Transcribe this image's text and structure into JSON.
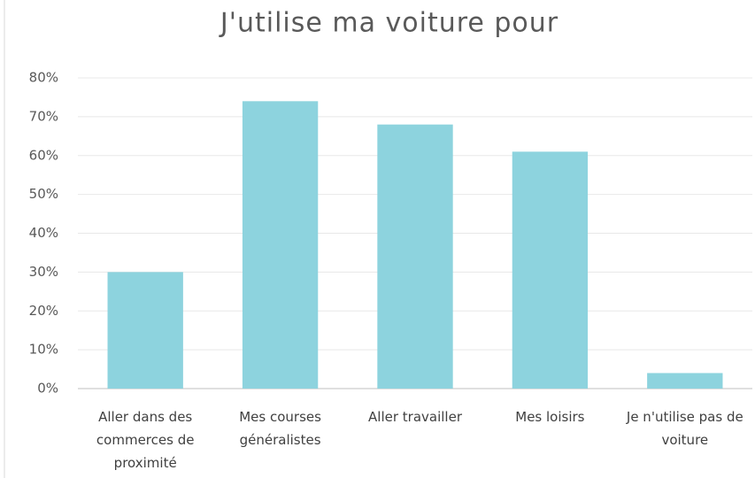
{
  "chart_data": {
    "type": "bar",
    "title": "J'utilise ma voiture pour",
    "categories": [
      "Aller dans des commerces de proximité",
      "Mes courses généralistes",
      "Aller travailler",
      "Mes loisirs",
      "Je n'utilise pas de voiture"
    ],
    "values": [
      30,
      74,
      68,
      61,
      4
    ],
    "color": "#8dd3de",
    "ylim": [
      0,
      80
    ],
    "yticks": [
      {
        "value": 0,
        "label": "0%"
      },
      {
        "value": 10,
        "label": "10%"
      },
      {
        "value": 20,
        "label": "20%"
      },
      {
        "value": 30,
        "label": "30%"
      },
      {
        "value": 40,
        "label": "40%"
      },
      {
        "value": 50,
        "label": "50%"
      },
      {
        "value": 60,
        "label": "60%"
      },
      {
        "value": 70,
        "label": "70%"
      },
      {
        "value": 80,
        "label": "80%"
      }
    ],
    "grid": true
  }
}
